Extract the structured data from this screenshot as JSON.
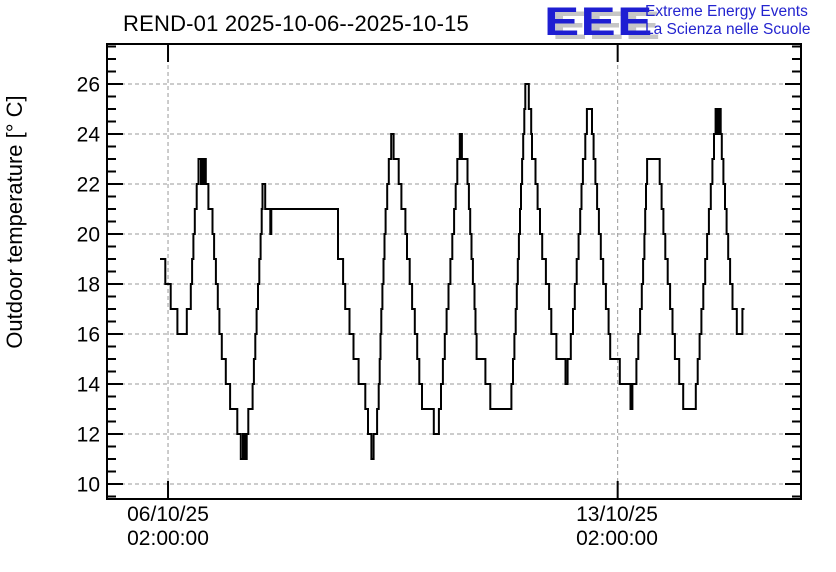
{
  "page": {
    "background": "#ffffff"
  },
  "logo": {
    "acronym": "EEE",
    "line1": "Extreme Energy Events",
    "line2": "La Scienza nelle Scuole",
    "text_color": "#2424cf",
    "shadow_color": "#c6c6c6"
  },
  "chart_data": {
    "type": "line",
    "step": true,
    "title": "REND-01 2025-10-06--2025-10-15",
    "ylabel": "Outdoor temperature [° C]",
    "xlabel": "",
    "series_name": "Outdoor temperature",
    "line_color": "#000000",
    "grid_color": "#999999",
    "grid": true,
    "legend": "none",
    "ylim": [
      9.4,
      27.6
    ],
    "y_major_ticks": [
      10,
      12,
      14,
      16,
      18,
      20,
      22,
      24,
      26
    ],
    "y_minor_step": 0.5,
    "x_epoch": "2025-10-06 00:00:00",
    "xlim_hours": [
      -20.8,
      238.5
    ],
    "x_ticks": [
      {
        "hours": 2,
        "date": "06/10/25",
        "time": "02:00:00"
      },
      {
        "hours": 170,
        "date": "13/10/25",
        "time": "02:00:00"
      }
    ],
    "points_hours_temp": [
      [
        -1.0,
        19
      ],
      [
        1.0,
        18
      ],
      [
        3.0,
        17
      ],
      [
        5.5,
        16
      ],
      [
        9.0,
        17
      ],
      [
        10.5,
        18
      ],
      [
        11.0,
        19
      ],
      [
        11.5,
        20
      ],
      [
        12.0,
        21
      ],
      [
        12.7,
        22
      ],
      [
        13.4,
        23
      ],
      [
        14.3,
        22
      ],
      [
        14.8,
        23
      ],
      [
        15.3,
        22
      ],
      [
        15.8,
        23
      ],
      [
        16.1,
        22
      ],
      [
        17.1,
        21
      ],
      [
        18.6,
        20
      ],
      [
        19.2,
        19
      ],
      [
        19.9,
        18
      ],
      [
        20.6,
        17
      ],
      [
        21.2,
        16
      ],
      [
        22.1,
        15
      ],
      [
        23.6,
        14
      ],
      [
        25.2,
        13
      ],
      [
        27.9,
        12
      ],
      [
        29.2,
        11
      ],
      [
        30.0,
        12
      ],
      [
        30.7,
        11
      ],
      [
        31.4,
        12
      ],
      [
        32.0,
        13
      ],
      [
        33.6,
        14
      ],
      [
        34.1,
        15
      ],
      [
        34.6,
        16
      ],
      [
        35.1,
        17
      ],
      [
        35.6,
        18
      ],
      [
        36.1,
        19
      ],
      [
        36.6,
        20
      ],
      [
        37.0,
        21
      ],
      [
        37.3,
        22
      ],
      [
        38.3,
        21
      ],
      [
        40.2,
        20
      ],
      [
        40.6,
        21
      ],
      [
        65.5,
        19
      ],
      [
        67.4,
        18
      ],
      [
        68.2,
        17
      ],
      [
        69.8,
        16
      ],
      [
        71.3,
        15
      ],
      [
        73.2,
        14
      ],
      [
        75.7,
        13
      ],
      [
        76.7,
        12
      ],
      [
        78.0,
        11
      ],
      [
        78.8,
        12
      ],
      [
        80.1,
        13
      ],
      [
        80.7,
        14
      ],
      [
        81.1,
        15
      ],
      [
        81.4,
        16
      ],
      [
        81.7,
        17
      ],
      [
        82.1,
        18
      ],
      [
        82.5,
        19
      ],
      [
        82.9,
        20
      ],
      [
        83.3,
        21
      ],
      [
        83.9,
        22
      ],
      [
        84.5,
        23
      ],
      [
        85.4,
        24
      ],
      [
        86.3,
        23
      ],
      [
        88.2,
        22
      ],
      [
        89.2,
        21
      ],
      [
        90.7,
        20
      ],
      [
        91.3,
        19
      ],
      [
        92.3,
        18
      ],
      [
        93.2,
        17
      ],
      [
        94.2,
        16
      ],
      [
        95.1,
        15
      ],
      [
        95.9,
        14
      ],
      [
        96.9,
        13
      ],
      [
        101.3,
        12
      ],
      [
        103.2,
        13
      ],
      [
        104.0,
        14
      ],
      [
        104.7,
        15
      ],
      [
        105.4,
        16
      ],
      [
        106.1,
        17
      ],
      [
        106.8,
        18
      ],
      [
        107.5,
        19
      ],
      [
        108.2,
        20
      ],
      [
        108.9,
        21
      ],
      [
        109.5,
        22
      ],
      [
        110.1,
        23
      ],
      [
        111.0,
        24
      ],
      [
        111.3,
        23
      ],
      [
        111.5,
        24
      ],
      [
        111.8,
        23
      ],
      [
        113.9,
        22
      ],
      [
        114.4,
        21
      ],
      [
        114.9,
        20
      ],
      [
        115.4,
        19
      ],
      [
        115.9,
        18
      ],
      [
        116.5,
        17
      ],
      [
        116.9,
        16
      ],
      [
        117.3,
        15
      ],
      [
        120.6,
        14
      ],
      [
        122.4,
        13
      ],
      [
        130.3,
        14
      ],
      [
        130.9,
        15
      ],
      [
        131.4,
        16
      ],
      [
        131.9,
        17
      ],
      [
        132.3,
        18
      ],
      [
        132.7,
        19
      ],
      [
        133.1,
        20
      ],
      [
        133.5,
        21
      ],
      [
        133.9,
        22
      ],
      [
        134.3,
        23
      ],
      [
        134.7,
        24
      ],
      [
        135.1,
        25
      ],
      [
        135.5,
        26
      ],
      [
        136.8,
        25
      ],
      [
        137.7,
        24
      ],
      [
        138.0,
        23
      ],
      [
        139.3,
        22
      ],
      [
        140.1,
        21
      ],
      [
        141.0,
        20
      ],
      [
        141.8,
        19
      ],
      [
        143.2,
        18
      ],
      [
        144.4,
        17
      ],
      [
        145.2,
        16
      ],
      [
        147.1,
        15
      ],
      [
        150.5,
        14
      ],
      [
        151.3,
        15
      ],
      [
        152.5,
        16
      ],
      [
        153.3,
        17
      ],
      [
        154.0,
        18
      ],
      [
        154.7,
        19
      ],
      [
        155.4,
        20
      ],
      [
        156.0,
        21
      ],
      [
        156.5,
        22
      ],
      [
        157.0,
        23
      ],
      [
        157.9,
        24
      ],
      [
        158.5,
        25
      ],
      [
        160.4,
        24
      ],
      [
        161.0,
        23
      ],
      [
        161.7,
        22
      ],
      [
        162.3,
        21
      ],
      [
        163.0,
        20
      ],
      [
        163.7,
        19
      ],
      [
        164.6,
        18
      ],
      [
        165.6,
        17
      ],
      [
        166.6,
        16
      ],
      [
        167.2,
        15
      ],
      [
        170.8,
        14
      ],
      [
        174.8,
        13
      ],
      [
        175.5,
        14
      ],
      [
        177.0,
        15
      ],
      [
        177.7,
        16
      ],
      [
        178.4,
        17
      ],
      [
        179.0,
        18
      ],
      [
        179.5,
        19
      ],
      [
        180.0,
        20
      ],
      [
        180.3,
        21
      ],
      [
        180.6,
        22
      ],
      [
        181.0,
        23
      ],
      [
        185.7,
        22
      ],
      [
        186.4,
        21
      ],
      [
        187.1,
        20
      ],
      [
        187.8,
        19
      ],
      [
        188.7,
        18
      ],
      [
        189.6,
        17
      ],
      [
        190.5,
        16
      ],
      [
        191.4,
        15
      ],
      [
        193.0,
        14
      ],
      [
        194.5,
        13
      ],
      [
        199.2,
        14
      ],
      [
        199.9,
        15
      ],
      [
        200.6,
        16
      ],
      [
        201.3,
        17
      ],
      [
        202.0,
        18
      ],
      [
        202.7,
        19
      ],
      [
        203.4,
        20
      ],
      [
        204.1,
        21
      ],
      [
        204.8,
        22
      ],
      [
        205.4,
        23
      ],
      [
        206.0,
        24
      ],
      [
        206.6,
        25
      ],
      [
        207.1,
        24
      ],
      [
        207.4,
        25
      ],
      [
        207.8,
        24
      ],
      [
        208.1,
        25
      ],
      [
        208.5,
        24
      ],
      [
        208.9,
        23
      ],
      [
        209.5,
        22
      ],
      [
        210.1,
        21
      ],
      [
        210.7,
        20
      ],
      [
        211.3,
        19
      ],
      [
        212.0,
        18
      ],
      [
        212.9,
        17
      ],
      [
        214.5,
        16
      ],
      [
        216.6,
        17
      ],
      [
        217.4,
        17
      ]
    ]
  }
}
